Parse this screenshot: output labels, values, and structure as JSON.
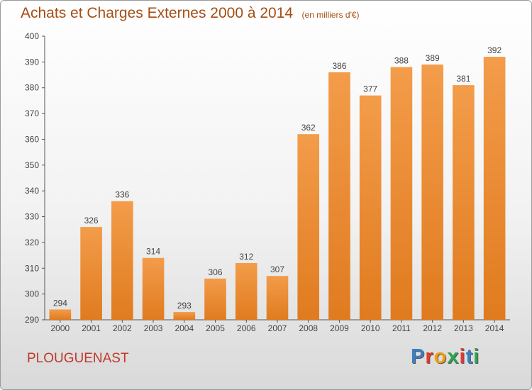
{
  "title": "Achats et Charges Externes 2000 à 2014",
  "subtitle": "(en milliers d'€)",
  "commune": "PLOUGUENAST",
  "logo": {
    "letters": [
      "P",
      "r",
      "o",
      "x",
      "i",
      "t",
      "i"
    ],
    "colors": [
      "#3a7fc4",
      "#e8392b",
      "#f39c12",
      "#2ea44f",
      "#e8392b",
      "#3a7fc4",
      "#2ea44f"
    ]
  },
  "colors": {
    "bar": "#f39c4a",
    "bar_dark": "#e07b1f",
    "text": "#444444"
  },
  "chart_data": {
    "type": "bar",
    "title": "Achats et Charges Externes 2000 à 2014",
    "subtitle": "(en milliers d'€)",
    "categories": [
      "2000",
      "2001",
      "2002",
      "2003",
      "2004",
      "2005",
      "2006",
      "2007",
      "2008",
      "2009",
      "2010",
      "2011",
      "2012",
      "2013",
      "2014"
    ],
    "values": [
      294,
      326,
      336,
      314,
      293,
      306,
      312,
      307,
      362,
      386,
      377,
      388,
      389,
      381,
      392
    ],
    "ylim": [
      290,
      400
    ],
    "yticks": [
      290,
      300,
      310,
      320,
      330,
      340,
      350,
      360,
      370,
      380,
      390,
      400
    ],
    "grid": false,
    "legend": "none"
  }
}
